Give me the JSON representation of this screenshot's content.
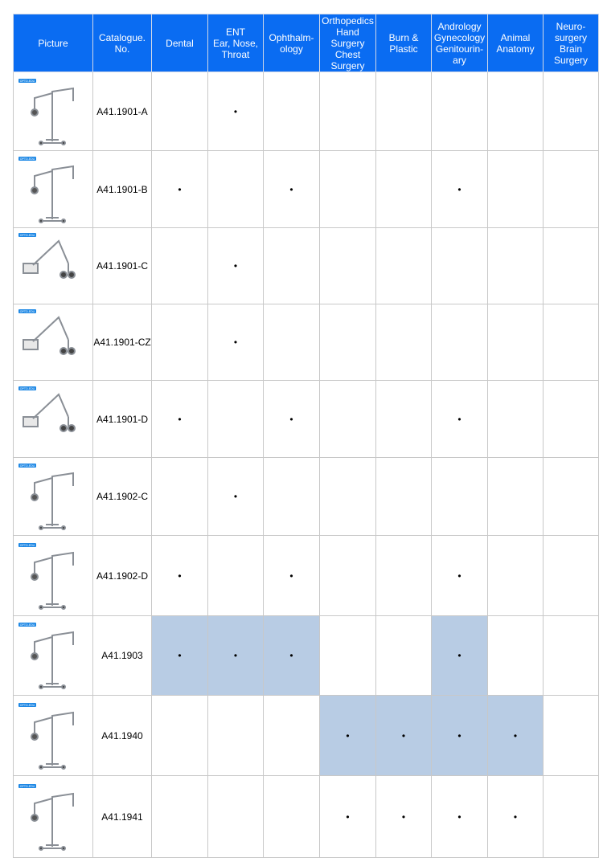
{
  "table": {
    "header_color": "#0a6cf2",
    "highlight_color": "#b8cce4",
    "logo": "OPTO-EDU",
    "columns": [
      "Picture",
      "Catalogue.\nNo.",
      "Dental",
      "ENT\nEar, Nose,\nThroat",
      "Ophthalm-\nology",
      "Orthopedics\nHand\nSurgery\nChest\nSurgery",
      "Burn &\nPlastic",
      "Andrology\nGynecology\nGenitourin-\nary",
      "Animal\nAnatomy",
      "Neuro-\nsurgery\nBrain\nSurgery"
    ],
    "rows": [
      {
        "catalogue": "A41.1901-A",
        "cells": [
          null,
          "•",
          null,
          null,
          null,
          null,
          null,
          null
        ],
        "highlight": false
      },
      {
        "catalogue": "A41.1901-B",
        "cells": [
          "•",
          null,
          "•",
          null,
          null,
          "•",
          null,
          null
        ],
        "highlight": false
      },
      {
        "catalogue": "A41.1901-C",
        "cells": [
          null,
          "•",
          null,
          null,
          null,
          null,
          null,
          null
        ],
        "highlight": false
      },
      {
        "catalogue": "A41.1901-CZ",
        "cells": [
          null,
          "•",
          null,
          null,
          null,
          null,
          null,
          null
        ],
        "highlight": false
      },
      {
        "catalogue": "A41.1901-D",
        "cells": [
          "•",
          null,
          "•",
          null,
          null,
          "•",
          null,
          null
        ],
        "highlight": false
      },
      {
        "catalogue": "A41.1902-C",
        "cells": [
          null,
          "•",
          null,
          null,
          null,
          null,
          null,
          null
        ],
        "highlight": false
      },
      {
        "catalogue": "A41.1902-D",
        "cells": [
          "•",
          null,
          "•",
          null,
          null,
          "•",
          null,
          null
        ],
        "highlight": false
      },
      {
        "catalogue": "A41.1903",
        "cells": [
          "•",
          "•",
          "•",
          null,
          null,
          "•",
          null,
          null
        ],
        "highlight": true
      },
      {
        "catalogue": "A41.1940",
        "cells": [
          null,
          null,
          null,
          "•",
          "•",
          "•",
          "•",
          null
        ],
        "highlight": true
      },
      {
        "catalogue": "A41.1941",
        "cells": [
          null,
          null,
          null,
          "•",
          "•",
          "•",
          "•",
          null
        ],
        "highlight": false
      }
    ]
  }
}
